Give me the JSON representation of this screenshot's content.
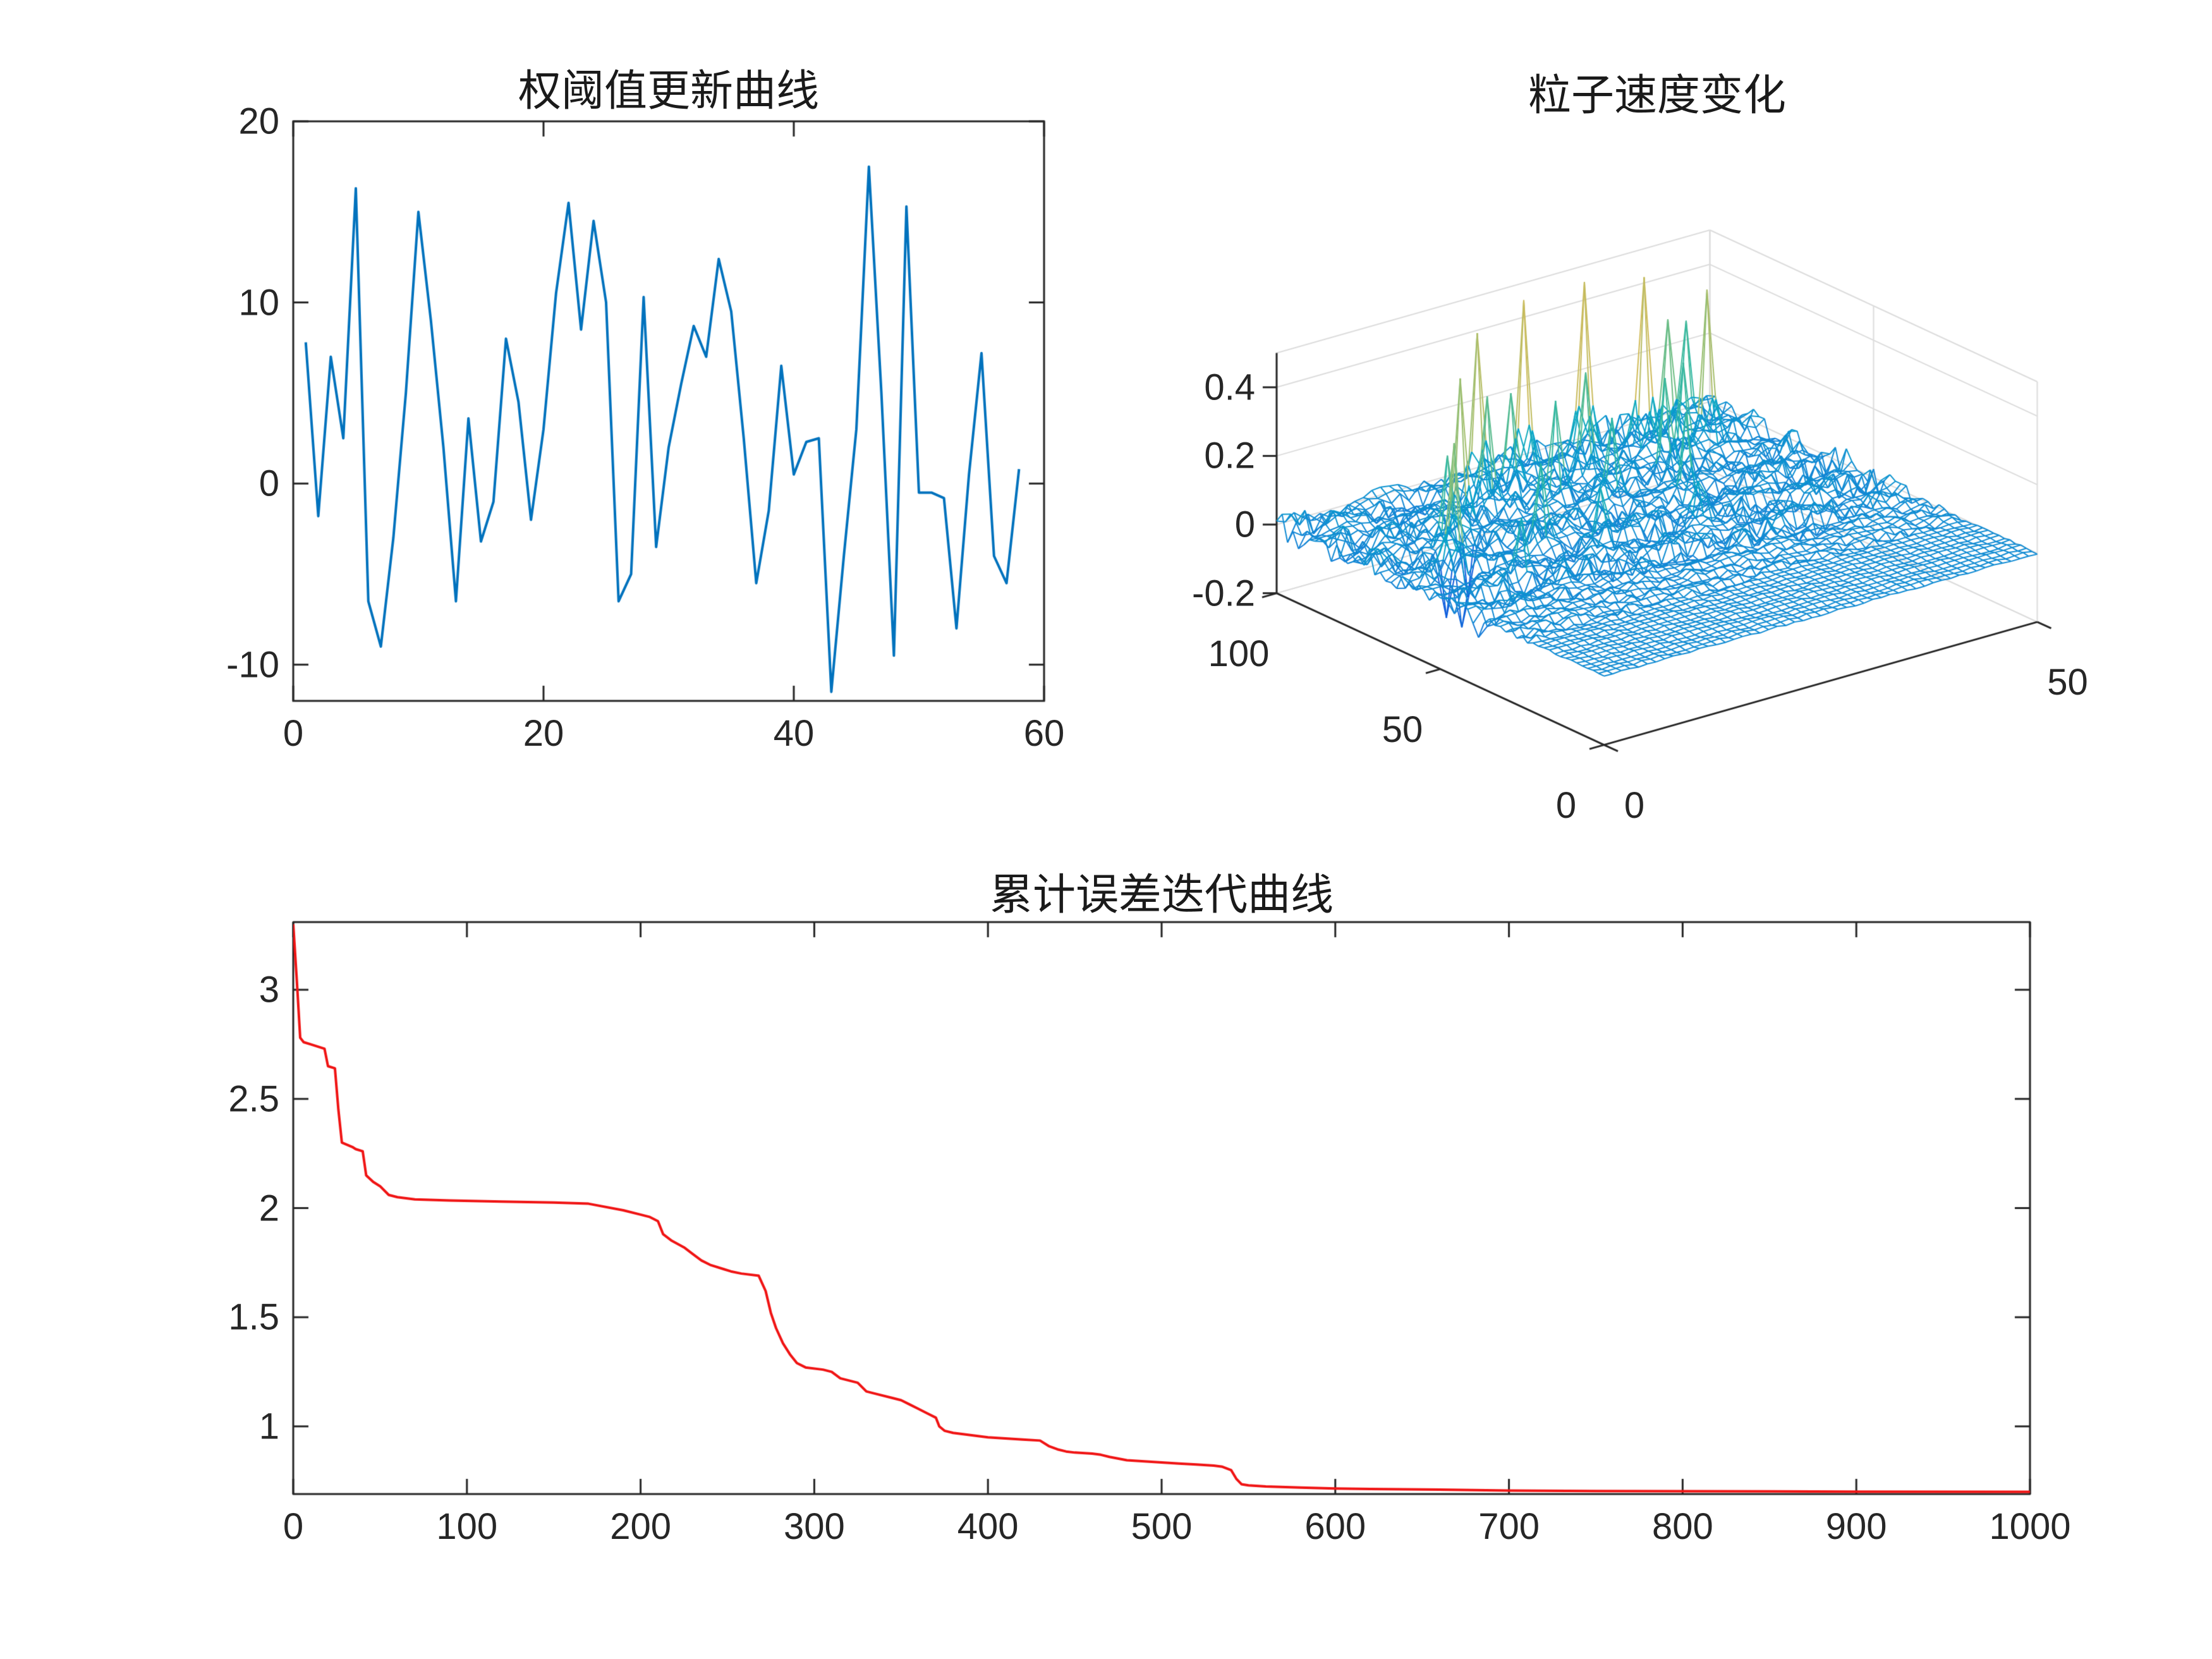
{
  "figure": {
    "background": "#ffffff",
    "axis_color": "#262626",
    "grid_color": "#dcdcdc"
  },
  "chart_data": [
    {
      "id": "weight-threshold-update",
      "type": "line",
      "title": "权阈值更新曲线",
      "line_color": "#0072BD",
      "xlim": [
        0,
        60
      ],
      "ylim": [
        -12,
        20
      ],
      "x_ticks": [
        0,
        20,
        40,
        60
      ],
      "y_ticks": [
        -10,
        0,
        10,
        20
      ],
      "x_start": 1,
      "values": [
        7.8,
        -1.8,
        7.0,
        2.5,
        16.3,
        -6.5,
        -9.0,
        -3.0,
        5.0,
        15.0,
        9.0,
        2.0,
        -6.5,
        3.6,
        -3.2,
        -1.0,
        8.0,
        4.5,
        -2.0,
        3.0,
        10.5,
        15.5,
        8.5,
        14.5,
        10.0,
        -6.5,
        -5.0,
        10.3,
        -3.5,
        2.0,
        5.5,
        8.7,
        7.0,
        12.4,
        9.5,
        2.5,
        -5.5,
        -1.5,
        6.5,
        0.5,
        2.3,
        2.5,
        -11.5,
        -4.0,
        3.0,
        17.5,
        5.0,
        -9.5,
        15.3,
        -0.5,
        -0.5,
        -0.8,
        -8.0,
        0.5,
        7.2,
        -4.0,
        -5.5,
        0.8
      ]
    },
    {
      "id": "particle-velocity",
      "type": "mesh3d",
      "title": "粒子速度变化",
      "xlim": [
        0,
        50
      ],
      "ylim": [
        0,
        100
      ],
      "zlim": [
        -0.2,
        0.5
      ],
      "x_axis_ticks": [
        0,
        50
      ],
      "y_axis_ticks": [
        0,
        50,
        100
      ],
      "z_ticks": [
        -0.2,
        0,
        0.2,
        0.4
      ],
      "grid": {
        "nx": 51,
        "ny": 61
      },
      "seed": 42,
      "colormap": [
        "#352a87",
        "#0f5cdd",
        "#1481d6",
        "#06a4ca",
        "#2eb7a4",
        "#87bf77",
        "#d1bb59",
        "#fec832",
        "#f9fb0e"
      ],
      "spikes": [
        {
          "x": 6,
          "y": 62,
          "z": 0.36
        },
        {
          "x": 7,
          "y": 67,
          "z": -0.2
        },
        {
          "x": 9,
          "y": 72,
          "z": 0.28
        },
        {
          "x": 13,
          "y": 79,
          "z": 0.44
        },
        {
          "x": 12,
          "y": 74,
          "z": -0.18
        },
        {
          "x": 16,
          "y": 62,
          "z": 0.22
        },
        {
          "x": 18,
          "y": 83,
          "z": 0.34
        },
        {
          "x": 20,
          "y": 91,
          "z": 0.42
        },
        {
          "x": 22,
          "y": 87,
          "z": 0.28
        },
        {
          "x": 24,
          "y": 79,
          "z": 0.26
        },
        {
          "x": 26,
          "y": 93,
          "z": 0.5
        },
        {
          "x": 28,
          "y": 71,
          "z": 0.24
        },
        {
          "x": 30,
          "y": 85,
          "z": 0.32
        },
        {
          "x": 33,
          "y": 94,
          "z": 0.5
        },
        {
          "x": 34,
          "y": 65,
          "z": 0.22
        },
        {
          "x": 36,
          "y": 77,
          "z": 0.28
        },
        {
          "x": 38,
          "y": 89,
          "z": 0.48
        },
        {
          "x": 40,
          "y": 81,
          "z": 0.26
        },
        {
          "x": 42,
          "y": 91,
          "z": 0.32
        },
        {
          "x": 44,
          "y": 85,
          "z": 0.42
        },
        {
          "x": 46,
          "y": 96,
          "z": 0.26
        },
        {
          "x": 10,
          "y": 52,
          "z": 0.16
        },
        {
          "x": 21,
          "y": 56,
          "z": 0.14
        },
        {
          "x": 31,
          "y": 53,
          "z": 0.13
        },
        {
          "x": 5,
          "y": 57,
          "z": -0.15
        }
      ]
    },
    {
      "id": "cumulative-error-iteration",
      "type": "line",
      "title": "累计误差迭代曲线",
      "line_color": "#f01414",
      "xlim": [
        0,
        1000
      ],
      "ylim": [
        0.69,
        3.31
      ],
      "x_ticks": [
        0,
        100,
        200,
        300,
        400,
        500,
        600,
        700,
        800,
        900,
        1000
      ],
      "y_ticks": [
        1,
        1.5,
        2,
        2.5,
        3
      ],
      "points": [
        [
          0,
          3.3
        ],
        [
          2,
          3.05
        ],
        [
          4,
          2.78
        ],
        [
          6,
          2.76
        ],
        [
          10,
          2.75
        ],
        [
          14,
          2.74
        ],
        [
          18,
          2.73
        ],
        [
          20,
          2.65
        ],
        [
          24,
          2.64
        ],
        [
          26,
          2.45
        ],
        [
          28,
          2.3
        ],
        [
          34,
          2.28
        ],
        [
          36,
          2.27
        ],
        [
          40,
          2.26
        ],
        [
          42,
          2.15
        ],
        [
          46,
          2.12
        ],
        [
          50,
          2.1
        ],
        [
          55,
          2.06
        ],
        [
          60,
          2.05
        ],
        [
          70,
          2.04
        ],
        [
          90,
          2.035
        ],
        [
          120,
          2.03
        ],
        [
          150,
          2.025
        ],
        [
          170,
          2.02
        ],
        [
          190,
          1.99
        ],
        [
          200,
          1.97
        ],
        [
          205,
          1.96
        ],
        [
          210,
          1.94
        ],
        [
          213,
          1.88
        ],
        [
          218,
          1.85
        ],
        [
          225,
          1.82
        ],
        [
          230,
          1.79
        ],
        [
          235,
          1.76
        ],
        [
          240,
          1.74
        ],
        [
          248,
          1.72
        ],
        [
          252,
          1.71
        ],
        [
          258,
          1.7
        ],
        [
          268,
          1.69
        ],
        [
          272,
          1.62
        ],
        [
          275,
          1.52
        ],
        [
          278,
          1.45
        ],
        [
          282,
          1.38
        ],
        [
          286,
          1.33
        ],
        [
          290,
          1.29
        ],
        [
          295,
          1.27
        ],
        [
          305,
          1.26
        ],
        [
          310,
          1.25
        ],
        [
          315,
          1.22
        ],
        [
          320,
          1.21
        ],
        [
          325,
          1.2
        ],
        [
          330,
          1.16
        ],
        [
          335,
          1.15
        ],
        [
          345,
          1.13
        ],
        [
          350,
          1.12
        ],
        [
          355,
          1.1
        ],
        [
          360,
          1.08
        ],
        [
          365,
          1.06
        ],
        [
          370,
          1.04
        ],
        [
          372,
          1.0
        ],
        [
          375,
          0.98
        ],
        [
          380,
          0.97
        ],
        [
          390,
          0.96
        ],
        [
          400,
          0.95
        ],
        [
          410,
          0.945
        ],
        [
          420,
          0.94
        ],
        [
          430,
          0.935
        ],
        [
          435,
          0.91
        ],
        [
          440,
          0.895
        ],
        [
          445,
          0.885
        ],
        [
          450,
          0.88
        ],
        [
          460,
          0.875
        ],
        [
          465,
          0.87
        ],
        [
          470,
          0.86
        ],
        [
          480,
          0.845
        ],
        [
          490,
          0.84
        ],
        [
          500,
          0.835
        ],
        [
          510,
          0.83
        ],
        [
          520,
          0.825
        ],
        [
          530,
          0.82
        ],
        [
          535,
          0.815
        ],
        [
          540,
          0.8
        ],
        [
          543,
          0.76
        ],
        [
          546,
          0.735
        ],
        [
          550,
          0.73
        ],
        [
          560,
          0.725
        ],
        [
          580,
          0.72
        ],
        [
          600,
          0.715
        ],
        [
          620,
          0.713
        ],
        [
          640,
          0.712
        ],
        [
          660,
          0.71
        ],
        [
          680,
          0.708
        ],
        [
          700,
          0.706
        ],
        [
          750,
          0.704
        ],
        [
          800,
          0.703
        ],
        [
          850,
          0.702
        ],
        [
          900,
          0.701
        ],
        [
          1000,
          0.7
        ]
      ]
    }
  ]
}
